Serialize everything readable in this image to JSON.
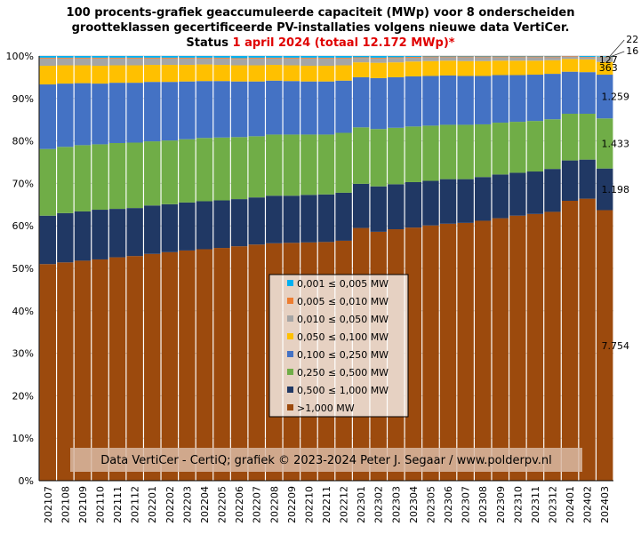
{
  "title": {
    "line1": "100 procents-grafiek geaccumuleerde capaciteit (MWp) voor 8 onderscheiden",
    "line2": "grootteklassen gecertificeerde PV-installaties volgens nieuwe data VertiCer.",
    "line3_prefix": "Status ",
    "line3_date": "1 april 2024",
    "line3_total": " (totaal 12.172 MWp)*"
  },
  "credit": "Data VertiCer - CertiQ; grafiek © 2023-2024 Peter J. Segaar / www.polderpv.nl",
  "chart_data": {
    "type": "bar",
    "stacked": true,
    "percent": true,
    "ylim": [
      0,
      100
    ],
    "yticks": [
      "0%",
      "10%",
      "20%",
      "30%",
      "40%",
      "50%",
      "60%",
      "70%",
      "80%",
      "90%",
      "100%"
    ],
    "categories": [
      "202107",
      "202108",
      "202109",
      "202110",
      "202111",
      "202112",
      "202201",
      "202202",
      "202203",
      "202204",
      "202205",
      "202206",
      "202207",
      "202208",
      "202209",
      "202210",
      "202211",
      "202212",
      "202301",
      "202302",
      "202303",
      "202304",
      "202305",
      "202306",
      "202307",
      "202308",
      "202309",
      "202310",
      "202311",
      "202312",
      "202401",
      "202402",
      "202403"
    ],
    "series": [
      {
        "name": ">1,000 MW",
        "color": "#9c4a0d",
        "values": [
          51.0,
          51.4,
          51.8,
          52.1,
          52.6,
          52.9,
          53.4,
          53.8,
          54.2,
          54.5,
          54.8,
          55.2,
          55.6,
          55.9,
          56.0,
          56.1,
          56.2,
          56.5,
          59.5,
          58.6,
          59.2,
          59.6,
          60.1,
          60.5,
          60.7,
          61.2,
          61.8,
          62.4,
          62.8,
          63.3,
          65.9,
          66.4,
          63.7
        ]
      },
      {
        "name": "0,500 ≤ 1,000 MW",
        "color": "#203864",
        "values": [
          11.4,
          11.6,
          11.6,
          11.7,
          11.4,
          11.3,
          11.4,
          11.3,
          11.3,
          11.3,
          11.2,
          11.1,
          11.1,
          11.2,
          11.1,
          11.2,
          11.2,
          11.3,
          10.4,
          10.7,
          10.6,
          10.7,
          10.5,
          10.5,
          10.3,
          10.3,
          10.3,
          10.1,
          10.0,
          10.1,
          9.5,
          9.2,
          9.8
        ]
      },
      {
        "name": "0,250 ≤ 0,500 MW",
        "color": "#70ad47",
        "values": [
          15.7,
          15.6,
          15.6,
          15.4,
          15.5,
          15.4,
          15.1,
          15.0,
          14.9,
          14.9,
          14.8,
          14.6,
          14.4,
          14.4,
          14.4,
          14.2,
          14.1,
          14.1,
          13.3,
          13.5,
          13.3,
          13.1,
          13.0,
          12.8,
          12.8,
          12.4,
          12.2,
          12.0,
          11.9,
          11.7,
          11.0,
          10.8,
          11.8
        ]
      },
      {
        "name": "0,100 ≤ 0,250 MW",
        "color": "#4472c4",
        "values": [
          15.2,
          14.9,
          14.6,
          14.3,
          14.2,
          14.1,
          14.0,
          13.8,
          13.6,
          13.4,
          13.3,
          13.1,
          12.9,
          12.7,
          12.6,
          12.5,
          12.5,
          12.3,
          11.8,
          12.0,
          11.9,
          11.8,
          11.7,
          11.6,
          11.5,
          11.4,
          11.2,
          11.0,
          10.9,
          10.7,
          9.9,
          9.8,
          10.3
        ]
      },
      {
        "name": "0,050 ≤ 0,100 MW",
        "color": "#ffc000",
        "values": [
          4.4,
          4.3,
          4.2,
          4.2,
          4.1,
          4.1,
          4.0,
          4.0,
          3.9,
          3.9,
          3.8,
          3.8,
          3.8,
          3.7,
          3.7,
          3.7,
          3.7,
          3.6,
          3.5,
          3.6,
          3.5,
          3.5,
          3.5,
          3.5,
          3.5,
          3.5,
          3.4,
          3.4,
          3.3,
          3.2,
          3.0,
          3.0,
          3.0
        ]
      },
      {
        "name": "0,010 ≤ 0,050 MW",
        "color": "#a5a5a5",
        "values": [
          1.7,
          1.6,
          1.6,
          1.7,
          1.6,
          1.6,
          1.5,
          1.5,
          1.5,
          1.4,
          1.5,
          1.5,
          1.6,
          1.5,
          1.6,
          1.7,
          1.7,
          1.6,
          1.0,
          1.0,
          1.0,
          0.9,
          0.9,
          0.8,
          0.9,
          0.9,
          0.8,
          0.8,
          0.8,
          0.7,
          0.6,
          0.5,
          1.0
        ]
      },
      {
        "name": "0,005 ≤ 0,010 MW",
        "color": "#ed7d31",
        "values": [
          0.2,
          0.2,
          0.2,
          0.2,
          0.2,
          0.2,
          0.2,
          0.2,
          0.2,
          0.2,
          0.2,
          0.2,
          0.2,
          0.2,
          0.2,
          0.2,
          0.2,
          0.2,
          0.2,
          0.2,
          0.2,
          0.2,
          0.2,
          0.2,
          0.2,
          0.2,
          0.2,
          0.2,
          0.2,
          0.2,
          0.1,
          0.1,
          0.13
        ]
      },
      {
        "name": "0,001 ≤ 0,005 MW",
        "color": "#00b0f0",
        "values": [
          0.4,
          0.4,
          0.4,
          0.4,
          0.4,
          0.4,
          0.4,
          0.4,
          0.4,
          0.4,
          0.4,
          0.5,
          0.4,
          0.4,
          0.4,
          0.4,
          0.4,
          0.4,
          0.3,
          0.4,
          0.3,
          0.2,
          0.1,
          0.1,
          0.1,
          0.1,
          0.1,
          0.1,
          0.1,
          0.1,
          0.0,
          0.2,
          0.18
        ]
      }
    ],
    "end_labels": [
      "7.754",
      "1.198",
      "1.433",
      "1.259",
      "363",
      "127",
      "16",
      "22"
    ],
    "legend": [
      {
        "label": "0,001 ≤  0,005 MW",
        "color": "#00b0f0"
      },
      {
        "label": "0,005 ≤  0,010 MW",
        "color": "#ed7d31"
      },
      {
        "label": "0,010 ≤  0,050 MW",
        "color": "#a5a5a5"
      },
      {
        "label": "0,050 ≤  0,100 MW",
        "color": "#ffc000"
      },
      {
        "label": "0,100 ≤  0,250 MW",
        "color": "#4472c4"
      },
      {
        "label": "0,250 ≤  0,500 MW",
        "color": "#70ad47"
      },
      {
        "label": "0,500 ≤  1,000 MW",
        "color": "#203864"
      },
      {
        "label": ">1,000 MW",
        "color": "#9c4a0d"
      }
    ],
    "legend_placement": "center"
  }
}
